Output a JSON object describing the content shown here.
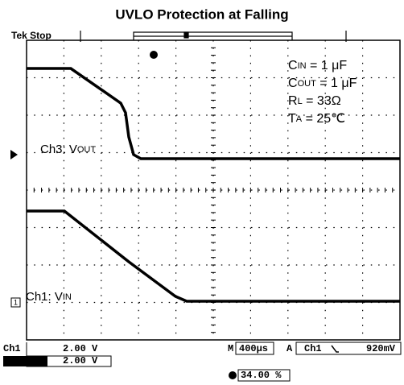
{
  "title": "UVLO Protection at Falling",
  "header": {
    "status": "Tek Stop"
  },
  "channels": [
    {
      "main": "Ch3: V",
      "sub": "OUT"
    },
    {
      "main": "Ch1: V",
      "sub": "IN"
    }
  ],
  "conditions": [
    {
      "main": "C",
      "sub": "IN",
      "rest": " = 1 μF"
    },
    {
      "main": "C",
      "sub": "OUT",
      "rest": " = 1 μF"
    },
    {
      "main": "R",
      "sub": "L",
      "rest": " = 33Ω"
    },
    {
      "main": "T",
      "sub": "A",
      "rest": " = 25℃"
    }
  ],
  "footer": {
    "ch1_name": "Ch1",
    "ch1_scale": "2.00 V",
    "ch3_scale": "2.00 V",
    "timebase_prefix": "M",
    "timebase": "400μs",
    "trigger_mode": "A",
    "trigger_source": "Ch1",
    "trigger_level": "920mV",
    "trigger_position": "34.00 %"
  }
}
